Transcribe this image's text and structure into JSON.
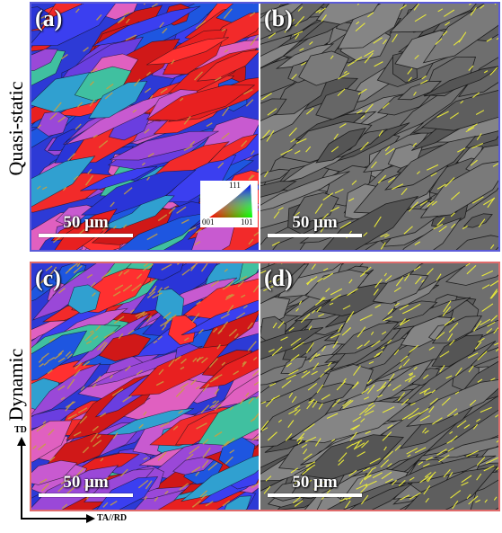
{
  "rows": [
    {
      "label": "Quasi-static"
    },
    {
      "label": "Dynamic"
    }
  ],
  "panels": [
    {
      "letter": "(a)",
      "type": "ipf-map",
      "scale_bar": "50 μm"
    },
    {
      "letter": "(b)",
      "type": "band-contrast",
      "scale_bar": "50 μm"
    },
    {
      "letter": "(c)",
      "type": "ipf-map",
      "scale_bar": "50 μm"
    },
    {
      "letter": "(d)",
      "type": "band-contrast",
      "scale_bar": "50 μm"
    }
  ],
  "ipf_legend": {
    "top": "111",
    "left": "001",
    "right": "101"
  },
  "axes": {
    "vertical": "TD",
    "horizontal": "TA//RD"
  },
  "colors": {
    "quasi_frame": "#5a5ad8",
    "dynamic_frame": "#e06b6b",
    "twin_boundary": "#e8e83a"
  }
}
